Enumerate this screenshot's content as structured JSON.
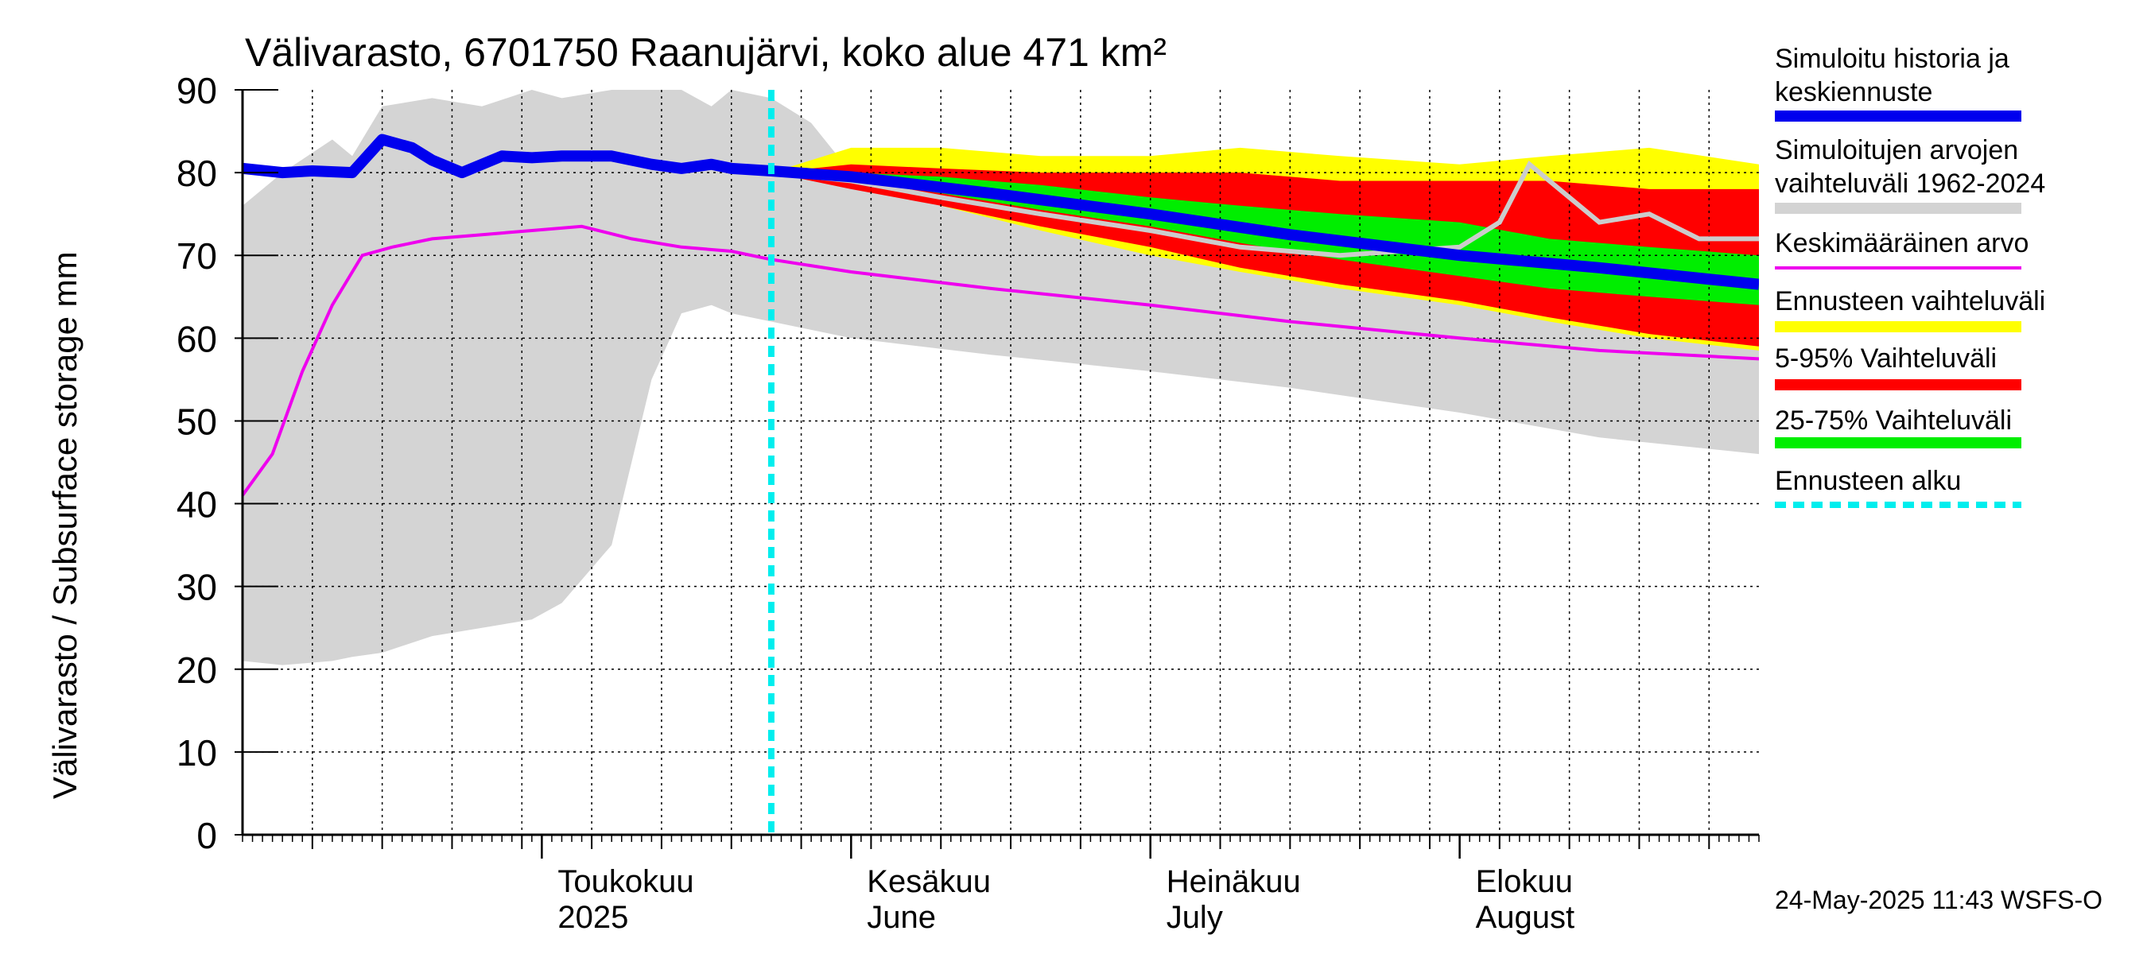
{
  "chart_data": {
    "type": "area",
    "title": "Välivarasto, 6701750 Raanujärvi, koko alue 471 km²",
    "ylabel": "Välivarasto / Subsurface storage  mm",
    "xlabel": "",
    "ylim": [
      0,
      90
    ],
    "yticks": [
      "0",
      "10",
      "20",
      "30",
      "40",
      "50",
      "60",
      "70",
      "80",
      "90"
    ],
    "xlim": [
      "2025-04-01",
      "2025-08-31"
    ],
    "grid": true,
    "legend_position": "right",
    "forecast_start": "2025-05-24",
    "timestamp": "24-May-2025 11:43 WSFS-O",
    "month_labels": [
      {
        "date": "2025-05-01",
        "fi": "Toukokuu",
        "en": "2025"
      },
      {
        "date": "2025-06-01",
        "fi": "Kesäkuu",
        "en": "June"
      },
      {
        "date": "2025-07-01",
        "fi": "Heinäkuu",
        "en": "July"
      },
      {
        "date": "2025-08-01",
        "fi": "Elokuu",
        "en": "August"
      }
    ],
    "legend": [
      {
        "label": "Simuloitu historia ja keskiennuste",
        "color": "#0000ee",
        "style": "thick"
      },
      {
        "label": "Simuloitujen arvojen vaihteluväli 1962-2024",
        "color": "#d3d3d3",
        "style": "band"
      },
      {
        "label": "Keskimääräinen arvo",
        "color": "#ee00ee",
        "style": "line"
      },
      {
        "label": "Ennusteen vaihteluväli",
        "color": "#ffff00",
        "style": "band"
      },
      {
        "label": "5-95% Vaihteluväli",
        "color": "#ff0000",
        "style": "band"
      },
      {
        "label": "25-75% Vaihteluväli",
        "color": "#00ee00",
        "style": "band"
      },
      {
        "label": "Ennusteen alku",
        "color": "#00eeee",
        "style": "dashed"
      }
    ],
    "series": {
      "history_range": {
        "x": [
          "2025-04-01",
          "2025-04-05",
          "2025-04-10",
          "2025-04-12",
          "2025-04-15",
          "2025-04-20",
          "2025-04-25",
          "2025-04-30",
          "2025-05-03",
          "2025-05-08",
          "2025-05-12",
          "2025-05-15",
          "2025-05-18",
          "2025-05-20",
          "2025-05-24",
          "2025-05-28",
          "2025-06-01",
          "2025-06-15",
          "2025-07-01",
          "2025-07-15",
          "2025-08-01",
          "2025-08-15",
          "2025-08-31"
        ],
        "low": [
          21,
          20.5,
          21,
          21.5,
          22,
          24,
          25,
          26,
          28,
          35,
          55,
          63,
          64,
          63,
          62,
          61,
          60,
          58,
          56,
          54,
          51,
          48,
          46
        ],
        "high": [
          76,
          80,
          84,
          82,
          88,
          89,
          88,
          90,
          89,
          90,
          90,
          90,
          88,
          90,
          89,
          86,
          80,
          77,
          75,
          74,
          74,
          75,
          75
        ]
      },
      "forecast_range": {
        "x": [
          "2025-05-24",
          "2025-06-01",
          "2025-06-10",
          "2025-06-20",
          "2025-07-01",
          "2025-07-10",
          "2025-07-20",
          "2025-08-01",
          "2025-08-10",
          "2025-08-20",
          "2025-08-31"
        ],
        "low": [
          80,
          78.5,
          76,
          73,
          70,
          68,
          66,
          64,
          62,
          60,
          58.5
        ],
        "high": [
          80,
          83,
          83,
          82,
          82,
          83,
          82,
          81,
          82,
          83,
          81
        ]
      },
      "p5_95": {
        "x": [
          "2025-05-24",
          "2025-06-01",
          "2025-06-10",
          "2025-06-20",
          "2025-07-01",
          "2025-07-10",
          "2025-07-20",
          "2025-08-01",
          "2025-08-10",
          "2025-08-20",
          "2025-08-31"
        ],
        "low": [
          80,
          78,
          76,
          73.5,
          71,
          68.5,
          66.5,
          64.5,
          62.5,
          60.5,
          59
        ],
        "high": [
          80,
          81,
          80.5,
          80,
          80,
          80,
          79,
          79,
          79,
          78,
          78
        ]
      },
      "p25_75": {
        "x": [
          "2025-05-24",
          "2025-06-01",
          "2025-06-10",
          "2025-06-20",
          "2025-07-01",
          "2025-07-10",
          "2025-07-20",
          "2025-08-01",
          "2025-08-10",
          "2025-08-20",
          "2025-08-31"
        ],
        "low": [
          80,
          79,
          77.5,
          75.5,
          73.5,
          71.5,
          69.5,
          67.5,
          66,
          65,
          64
        ],
        "high": [
          80,
          80,
          79.5,
          78.5,
          77,
          76,
          75,
          74,
          72,
          71,
          70
        ]
      },
      "simulated_history_forecast": {
        "x": [
          "2025-04-01",
          "2025-04-05",
          "2025-04-08",
          "2025-04-12",
          "2025-04-15",
          "2025-04-18",
          "2025-04-20",
          "2025-04-23",
          "2025-04-27",
          "2025-04-30",
          "2025-05-03",
          "2025-05-08",
          "2025-05-12",
          "2025-05-15",
          "2025-05-18",
          "2025-05-20",
          "2025-05-24",
          "2025-06-01",
          "2025-06-15",
          "2025-07-01",
          "2025-07-15",
          "2025-08-01",
          "2025-08-15",
          "2025-08-31"
        ],
        "y": [
          80.5,
          80,
          80.2,
          80,
          84,
          83,
          81.5,
          80,
          82,
          81.8,
          82,
          82,
          81,
          80.5,
          81,
          80.5,
          80.2,
          79.5,
          77.5,
          75,
          72.5,
          70,
          68.5,
          66.5
        ]
      },
      "mean": {
        "x": [
          "2025-04-01",
          "2025-04-04",
          "2025-04-07",
          "2025-04-10",
          "2025-04-13",
          "2025-04-16",
          "2025-04-20",
          "2025-04-25",
          "2025-04-30",
          "2025-05-05",
          "2025-05-10",
          "2025-05-15",
          "2025-05-20",
          "2025-05-24",
          "2025-06-01",
          "2025-06-15",
          "2025-07-01",
          "2025-07-15",
          "2025-08-01",
          "2025-08-15",
          "2025-08-31"
        ],
        "y": [
          41,
          46,
          56,
          64,
          70,
          71,
          72,
          72.5,
          73,
          73.5,
          72,
          71,
          70.5,
          69.5,
          68,
          66,
          64,
          62,
          60,
          58.5,
          57.5
        ]
      },
      "reference_year_grey": {
        "x": [
          "2025-05-24",
          "2025-06-01",
          "2025-06-10",
          "2025-06-20",
          "2025-07-01",
          "2025-07-10",
          "2025-07-20",
          "2025-08-01",
          "2025-08-05",
          "2025-08-08",
          "2025-08-15",
          "2025-08-20",
          "2025-08-25",
          "2025-08-31"
        ],
        "y": [
          80,
          79,
          77,
          75,
          73,
          71,
          70,
          71,
          74,
          81,
          74,
          75,
          72,
          72
        ]
      }
    }
  }
}
